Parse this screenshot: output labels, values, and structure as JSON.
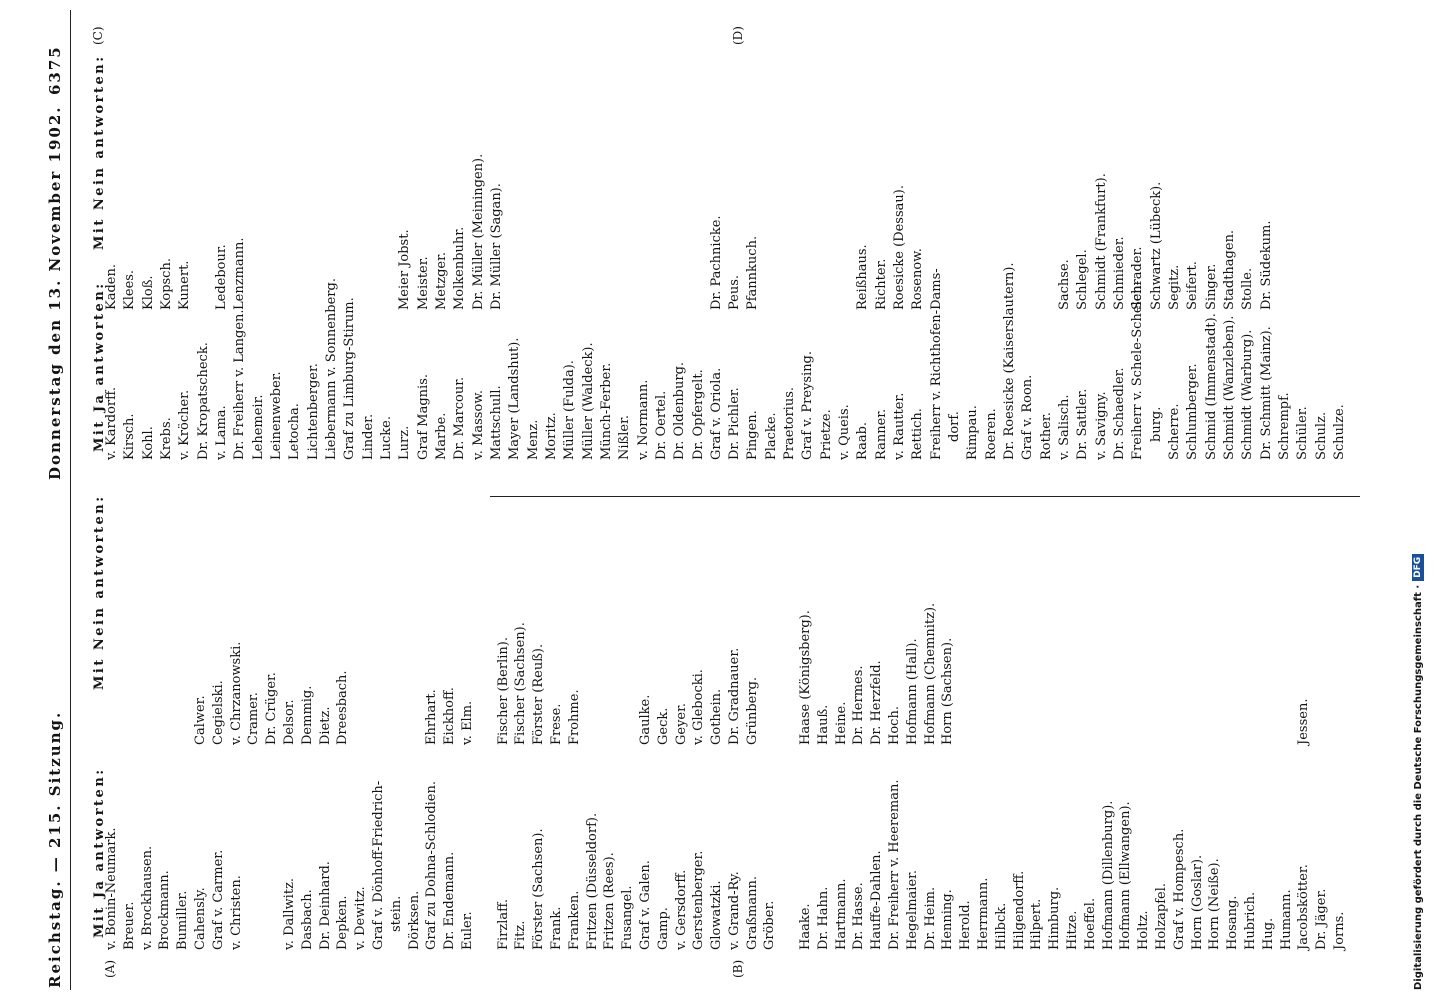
{
  "header": {
    "left": "Reichstag. — 215. Sitzung.",
    "center": "Donnerstag den 13. November 1902.",
    "page_number": "6375"
  },
  "margin_marks": [
    "(A)",
    "(B)",
    "(C)",
    "(D)"
  ],
  "left_column": {
    "yes_heading": "Mit Ja antworten:",
    "no_heading": "Mit Nein antworten:",
    "rows": [
      [
        "v. Bonin-Neumark.",
        null
      ],
      [
        "Breuer.",
        null
      ],
      [
        "v. Brockhausen.",
        null
      ],
      [
        "Brockmann.",
        null
      ],
      [
        "Bumiller.",
        null
      ],
      [
        "Cahensly.",
        "Calwer."
      ],
      [
        "Graf v. Carmer.",
        "Cegielski."
      ],
      [
        "v. Christen.",
        "v. Chrzanowski."
      ],
      [
        null,
        "Cramer."
      ],
      [
        null,
        "Dr. Crüger."
      ],
      [
        "v. Dallwitz.",
        "Delsor."
      ],
      [
        "Dasbach.",
        "Demmig."
      ],
      [
        "Dr. Deinhard.",
        "Dietz."
      ],
      [
        "Depken.",
        "Dreesbach."
      ],
      [
        "v. Dewitz.",
        null
      ],
      [
        "Graf v. Dönhoff-Friedrich-",
        null
      ],
      [
        "stein.",
        null
      ],
      [
        "Dörksen.",
        null
      ],
      [
        "Graf zu Dohna-Schlodien.",
        "Ehrhart."
      ],
      [
        "Dr. Endemann.",
        "Eickhoff."
      ],
      [
        "Euler.",
        "v. Elm."
      ],
      [
        null,
        null
      ],
      [
        "Firzlaff.",
        "Fischer (Berlin)."
      ],
      [
        "Fitz.",
        "Fischer (Sachsen)."
      ],
      [
        "Förster (Sachsen).",
        "Förster (Reuß)."
      ],
      [
        "Frank.",
        "Frese."
      ],
      [
        "Franken.",
        "Frohme."
      ],
      [
        "Fritzen (Düsseldorf).",
        null
      ],
      [
        "Fritzen (Rees).",
        null
      ],
      [
        "Fusangel.",
        null
      ],
      [
        "Graf v. Galen.",
        "Gaulke."
      ],
      [
        "Gamp.",
        "Geck."
      ],
      [
        "v. Gersdorff.",
        "Geyer."
      ],
      [
        "Gerstenberger.",
        "v. Glebocki."
      ],
      [
        "Glowatzki.",
        "Gothein."
      ],
      [
        "v. Grand-Ry.",
        "Dr. Gradnauer."
      ],
      [
        "Graßmann.",
        "Grünberg."
      ],
      [
        "Gröber.",
        null
      ],
      [
        null,
        null
      ],
      [
        "Haake.",
        "Haase (Königsberg)."
      ],
      [
        "Dr. Hahn.",
        "Hauß."
      ],
      [
        "Hartmann.",
        "Heine."
      ],
      [
        "Dr. Hasse.",
        "Dr. Hermes."
      ],
      [
        "Hauffe-Dahlen.",
        "Dr. Herzfeld."
      ],
      [
        "Dr. Freiherr v. Heereman.",
        "Hoch."
      ],
      [
        "Hegelmaier.",
        "Hofmann (Hall)."
      ],
      [
        "Dr. Heim.",
        "Hofmann (Chemnitz)."
      ],
      [
        "Henning.",
        "Horn (Sachsen)."
      ],
      [
        "Herold.",
        null
      ],
      [
        "Herrmann.",
        null
      ],
      [
        "Hilbck.",
        null
      ],
      [
        "Hilgendorff.",
        null
      ],
      [
        "Hilpert.",
        null
      ],
      [
        "Himburg.",
        null
      ],
      [
        "Hitze.",
        null
      ],
      [
        "Hoeffel.",
        null
      ],
      [
        "Hofmann (Dillenburg).",
        null
      ],
      [
        "Hofmann (Ellwangen).",
        null
      ],
      [
        "Holtz.",
        null
      ],
      [
        "Holzapfel.",
        null
      ],
      [
        "Graf v. Hompesch.",
        null
      ],
      [
        "Horn (Goslar).",
        null
      ],
      [
        "Horn (Neiße).",
        null
      ],
      [
        "Hosang.",
        null
      ],
      [
        "Hubrich.",
        null
      ],
      [
        "Hug.",
        null
      ],
      [
        "Humann.",
        null
      ],
      [
        "Jacobskötter.",
        "Jessen."
      ],
      [
        "Dr. Jäger.",
        null
      ],
      [
        "Jorns.",
        null
      ]
    ]
  },
  "right_column": {
    "yes_heading": "Mit Ja antworten:",
    "no_heading": "Mit Nein antworten:",
    "rows": [
      [
        "v. Kardorff.",
        "Kaden."
      ],
      [
        "Kirsch.",
        "Klees."
      ],
      [
        "Kohl.",
        "Kloß."
      ],
      [
        "Krebs.",
        "Kopsch."
      ],
      [
        "v. Kröcher.",
        "Kunert."
      ],
      [
        "Dr. Kropatscheck.",
        null
      ],
      [
        "v. Lama.",
        "Ledebour."
      ],
      [
        "Dr. Freiherr v. Langen.",
        "Lenzmann."
      ],
      [
        "Lehemeir.",
        null
      ],
      [
        "Leinenweber.",
        null
      ],
      [
        "Letocha.",
        null
      ],
      [
        "Lichtenberger.",
        null
      ],
      [
        "Liebermann v. Sonnenberg.",
        null
      ],
      [
        "Graf zu Limburg-Stirum.",
        null
      ],
      [
        "Linder.",
        null
      ],
      [
        "Lucke.",
        null
      ],
      [
        "Lurz.",
        "Meier Jobst."
      ],
      [
        "Graf Magnis.",
        "Meister."
      ],
      [
        "Marbe.",
        "Metzger."
      ],
      [
        "Dr. Marcour.",
        "Molkenbuhr."
      ],
      [
        "v. Massow.",
        "Dr. Müller (Meiningen)."
      ],
      [
        "Mattschull.",
        "Dr. Müller (Sagan)."
      ],
      [
        "Mayer (Landshut).",
        null
      ],
      [
        "Menz.",
        null
      ],
      [
        "Moritz.",
        null
      ],
      [
        "Müller (Fulda).",
        null
      ],
      [
        "Müller (Waldeck).",
        null
      ],
      [
        "Münch-Ferber.",
        null
      ],
      [
        "Nißler.",
        null
      ],
      [
        "v. Normann.",
        null
      ],
      [
        "Dr. Oertel.",
        null
      ],
      [
        "Dr. Oldenburg.",
        null
      ],
      [
        "Dr. Opfergelt.",
        null
      ],
      [
        "Graf v. Oriola.",
        "Dr. Pachnicke."
      ],
      [
        "Dr. Pichler.",
        "Peus."
      ],
      [
        "Pingen.",
        "Pfannkuch."
      ],
      [
        "Placke.",
        null
      ],
      [
        "Praetorius.",
        null
      ],
      [
        "Graf v. Preysing.",
        null
      ],
      [
        "Prietze.",
        null
      ],
      [
        "v. Queis.",
        null
      ],
      [
        "Raab.",
        "Reißhaus."
      ],
      [
        "Ranner.",
        "Richter."
      ],
      [
        "v. Rautter.",
        "Roesicke (Dessau)."
      ],
      [
        "Rettich.",
        "Rosenow."
      ],
      [
        "Freiherr v. Richthofen-Dams-",
        null
      ],
      [
        "dorf.",
        null
      ],
      [
        "Rimpau.",
        null
      ],
      [
        "Roeren.",
        null
      ],
      [
        "Dr. Roesicke (Kaiserslautern).",
        null
      ],
      [
        "Graf v. Roon.",
        null
      ],
      [
        "Rother.",
        null
      ],
      [
        "v. Salisch.",
        "Sachse."
      ],
      [
        "Dr. Sattler.",
        "Schlegel."
      ],
      [
        "v. Savigny.",
        "Schmidt (Frankfurt)."
      ],
      [
        "Dr. Schaedler.",
        "Schmieder."
      ],
      [
        "Freiherr v. Schele-Schelen-",
        "Schrader."
      ],
      [
        "burg.",
        "Schwartz (Lübeck)."
      ],
      [
        "Scherre.",
        "Segitz."
      ],
      [
        "Schlumberger.",
        "Seifert."
      ],
      [
        "Schmid (Immenstadt).",
        "Singer."
      ],
      [
        "Schmidt (Wanzleben).",
        "Stadthagen."
      ],
      [
        "Schmidt (Warburg).",
        "Stolle."
      ],
      [
        "Dr. Schmitt (Mainz).",
        "Dr. Südekum."
      ],
      [
        "Schrempf.",
        null
      ],
      [
        "Schüler.",
        null
      ],
      [
        "Schulz.",
        null
      ],
      [
        "Schulze.",
        null
      ]
    ]
  },
  "footer_note": {
    "text": "Digitalisierung gefördert durch die Deutsche Forschungsgemeinschaft ·",
    "logo": "DFG"
  }
}
